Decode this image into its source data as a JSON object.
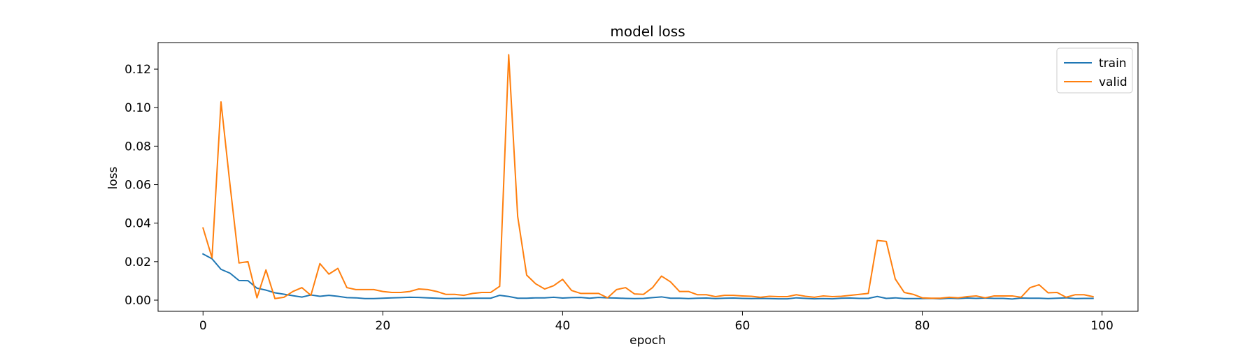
{
  "chart_data": {
    "type": "line",
    "title": "model loss",
    "xlabel": "epoch",
    "ylabel": "loss",
    "xlim": [
      -5,
      104
    ],
    "ylim": [
      -0.0058,
      0.1338
    ],
    "xticks": [
      0,
      20,
      40,
      60,
      80,
      100
    ],
    "xtick_labels": [
      "0",
      "20",
      "40",
      "60",
      "80",
      "100"
    ],
    "yticks": [
      0.0,
      0.02,
      0.04,
      0.06,
      0.08,
      0.1,
      0.12
    ],
    "ytick_labels": [
      "0.00",
      "0.02",
      "0.04",
      "0.06",
      "0.08",
      "0.10",
      "0.12"
    ],
    "grid": false,
    "legend_position": "top-right",
    "x": [
      0,
      1,
      2,
      3,
      4,
      5,
      6,
      7,
      8,
      9,
      10,
      11,
      12,
      13,
      14,
      15,
      16,
      17,
      18,
      19,
      20,
      21,
      22,
      23,
      24,
      25,
      26,
      27,
      28,
      29,
      30,
      31,
      32,
      33,
      34,
      35,
      36,
      37,
      38,
      39,
      40,
      41,
      42,
      43,
      44,
      45,
      46,
      47,
      48,
      49,
      50,
      51,
      52,
      53,
      54,
      55,
      56,
      57,
      58,
      59,
      60,
      61,
      62,
      63,
      64,
      65,
      66,
      67,
      68,
      69,
      70,
      71,
      72,
      73,
      74,
      75,
      76,
      77,
      78,
      79,
      80,
      81,
      82,
      83,
      84,
      85,
      86,
      87,
      88,
      89,
      90,
      91,
      92,
      93,
      94,
      95,
      96,
      97,
      98,
      99
    ],
    "series": [
      {
        "name": "train",
        "color": "#1f77b4",
        "values": [
          0.024,
          0.0215,
          0.016,
          0.014,
          0.0102,
          0.0101,
          0.0062,
          0.0052,
          0.0038,
          0.0031,
          0.0023,
          0.0016,
          0.0027,
          0.002,
          0.0025,
          0.002,
          0.0013,
          0.0012,
          0.0008,
          0.0008,
          0.001,
          0.0012,
          0.0013,
          0.0015,
          0.0014,
          0.0012,
          0.001,
          0.0008,
          0.0009,
          0.0009,
          0.001,
          0.001,
          0.001,
          0.0025,
          0.0019,
          0.001,
          0.001,
          0.0012,
          0.0012,
          0.0015,
          0.0011,
          0.0013,
          0.0014,
          0.001,
          0.0014,
          0.0012,
          0.0011,
          0.0009,
          0.0008,
          0.0009,
          0.0013,
          0.0017,
          0.001,
          0.001,
          0.0008,
          0.001,
          0.0011,
          0.0008,
          0.001,
          0.0011,
          0.0009,
          0.0008,
          0.0009,
          0.0008,
          0.0007,
          0.0007,
          0.0012,
          0.0009,
          0.0007,
          0.0008,
          0.0007,
          0.001,
          0.0011,
          0.0009,
          0.0009,
          0.0019,
          0.0009,
          0.0012,
          0.0008,
          0.0008,
          0.0008,
          0.0009,
          0.0007,
          0.001,
          0.0008,
          0.0011,
          0.0009,
          0.0011,
          0.0009,
          0.0009,
          0.0006,
          0.0011,
          0.001,
          0.001,
          0.0008,
          0.001,
          0.0012,
          0.0008,
          0.0009,
          0.0009
        ]
      },
      {
        "name": "valid",
        "color": "#ff7f0e",
        "values": [
          0.0375,
          0.022,
          0.103,
          0.06,
          0.0193,
          0.02,
          0.0012,
          0.0157,
          0.0008,
          0.0015,
          0.0045,
          0.0065,
          0.0025,
          0.019,
          0.0135,
          0.0165,
          0.0065,
          0.0055,
          0.0055,
          0.0055,
          0.0045,
          0.004,
          0.004,
          0.0045,
          0.0058,
          0.0055,
          0.0045,
          0.003,
          0.003,
          0.0025,
          0.0035,
          0.004,
          0.004,
          0.0072,
          0.1275,
          0.0435,
          0.013,
          0.0085,
          0.0058,
          0.0075,
          0.0108,
          0.005,
          0.0035,
          0.0035,
          0.0035,
          0.0012,
          0.0055,
          0.0065,
          0.0032,
          0.003,
          0.0065,
          0.0125,
          0.0095,
          0.0045,
          0.0045,
          0.0028,
          0.0028,
          0.0018,
          0.0025,
          0.0025,
          0.0022,
          0.002,
          0.0015,
          0.002,
          0.0018,
          0.0018,
          0.0028,
          0.002,
          0.0015,
          0.0022,
          0.0018,
          0.002,
          0.0025,
          0.003,
          0.0035,
          0.031,
          0.0305,
          0.011,
          0.004,
          0.003,
          0.0012,
          0.001,
          0.001,
          0.0015,
          0.0012,
          0.0018,
          0.0022,
          0.0012,
          0.0022,
          0.0022,
          0.0022,
          0.0015,
          0.0065,
          0.008,
          0.0038,
          0.004,
          0.0015,
          0.0028,
          0.0028,
          0.0018
        ]
      }
    ]
  }
}
